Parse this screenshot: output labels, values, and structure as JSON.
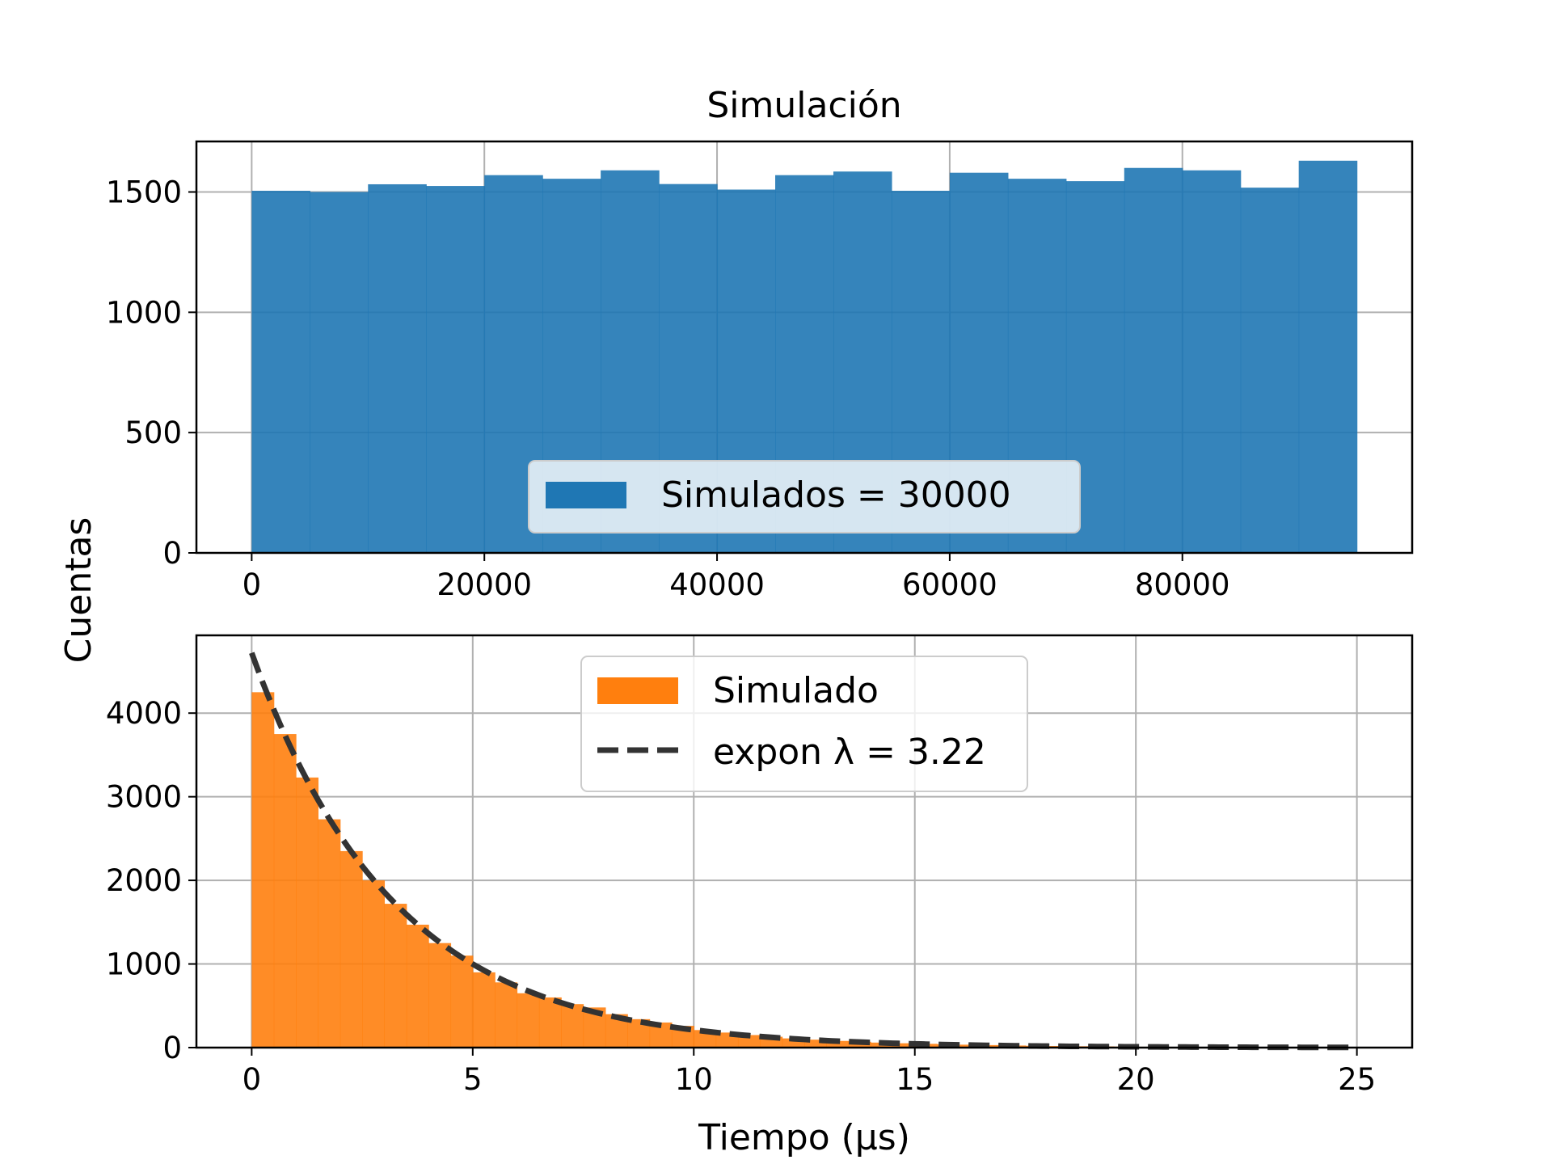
{
  "figure": {
    "ylabel": "Cuentas"
  },
  "chart_data": [
    {
      "type": "bar",
      "title": "Simulación",
      "xlabel": "",
      "ylabel": "Cuentas",
      "xlim": [
        -4750,
        99750
      ],
      "ylim": [
        0,
        1710
      ],
      "xticks": [
        0,
        20000,
        40000,
        60000,
        80000
      ],
      "xtick_labels": [
        "0",
        "20000",
        "40000",
        "60000",
        "80000"
      ],
      "yticks": [
        0,
        500,
        1000,
        1500
      ],
      "ytick_labels": [
        "0",
        "500",
        "1000",
        "1500"
      ],
      "grid": true,
      "legend": {
        "placement": "lower center",
        "entries": [
          "Simulados = 30000"
        ]
      },
      "color": "#1f77b4",
      "bin_edges": [
        0,
        5000,
        10000,
        15000,
        20000,
        25000,
        30000,
        35000,
        40000,
        45000,
        50000,
        55000,
        60000,
        65000,
        70000,
        75000,
        80000,
        85000,
        90000,
        95000
      ],
      "series": [
        {
          "name": "Simulados = 30000",
          "values": [
            1505,
            1500,
            1532,
            1525,
            1570,
            1555,
            1590,
            1533,
            1510,
            1570,
            1585,
            1505,
            1580,
            1555,
            1545,
            1600,
            1590,
            1518,
            1630
          ]
        }
      ]
    },
    {
      "type": "bar",
      "title": "",
      "xlabel": "Tiempo (μs)",
      "ylabel": "Cuentas",
      "xlim": [
        -1.25,
        26.25
      ],
      "ylim": [
        0,
        4930
      ],
      "xticks": [
        0,
        5,
        10,
        15,
        20,
        25
      ],
      "xtick_labels": [
        "0",
        "5",
        "10",
        "15",
        "20",
        "25"
      ],
      "yticks": [
        0,
        1000,
        2000,
        3000,
        4000
      ],
      "ytick_labels": [
        "0",
        "1000",
        "2000",
        "3000",
        "4000"
      ],
      "grid": true,
      "legend": {
        "placement": "upper center",
        "entries": [
          "Simulado",
          "expon λ = 3.22"
        ]
      },
      "color": "#ff7f0e",
      "bin_width": 0.5,
      "series": [
        {
          "name": "Simulado",
          "kind": "histogram",
          "values": [
            4250,
            3750,
            3230,
            2730,
            2350,
            2000,
            1720,
            1470,
            1250,
            1100,
            900,
            780,
            650,
            600,
            520,
            480,
            400,
            340,
            300,
            260,
            210,
            180,
            150,
            130,
            110,
            95,
            80,
            70,
            60,
            52,
            45,
            40,
            35,
            30,
            25,
            22,
            19,
            16,
            14,
            12,
            10,
            9,
            8,
            7,
            6,
            5,
            4,
            3,
            3,
            2
          ]
        },
        {
          "name": "expon λ = 3.22",
          "kind": "line",
          "style": "dashed",
          "color": "#333333",
          "lambda": 3.22,
          "amplitude": 4720,
          "x_range": [
            0,
            25
          ]
        }
      ]
    }
  ]
}
